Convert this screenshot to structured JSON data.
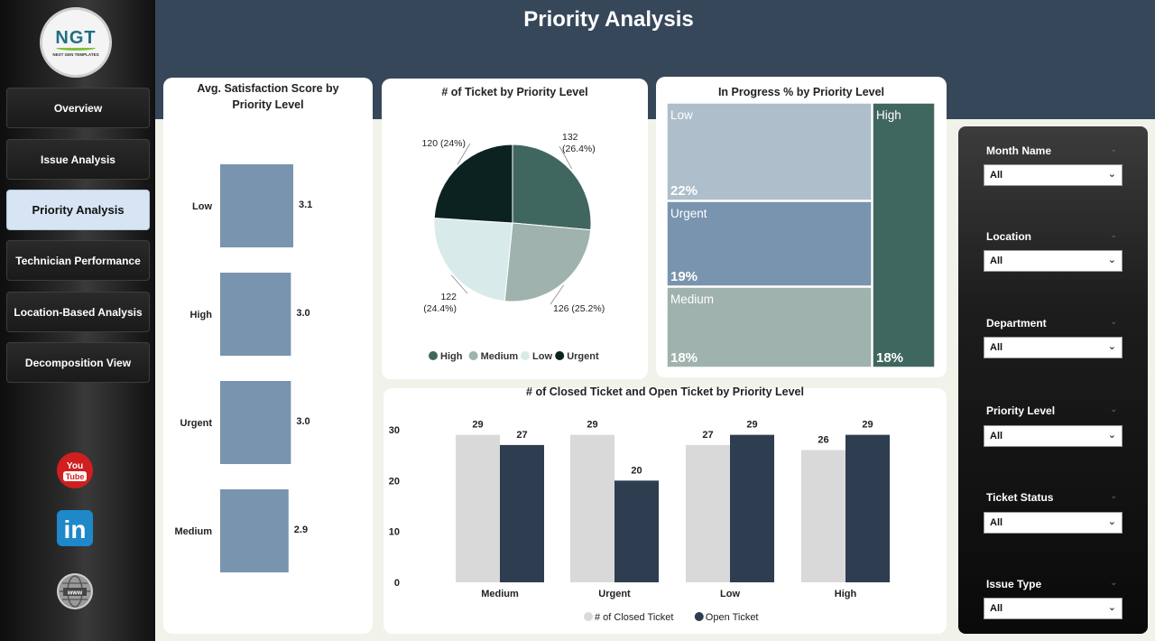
{
  "brand": {
    "logo_text": "NGT",
    "logo_subtext": "NEXT GEN TEMPLATES"
  },
  "nav": {
    "items": [
      {
        "label": "Overview"
      },
      {
        "label": "Issue Analysis"
      },
      {
        "label": "Priority Analysis",
        "active": true
      },
      {
        "label": "Technician Performance"
      },
      {
        "label": "Location-Based Analysis"
      },
      {
        "label": "Decomposition View"
      }
    ]
  },
  "social": {
    "youtube_label": "You",
    "youtube_label2": "Tube",
    "linkedin_label": "in",
    "web_label": "www"
  },
  "header": {
    "title": "Priority Analysis"
  },
  "satisfaction": {
    "title_line1": "Avg. Satisfaction Score by",
    "title_line2": "Priority Level"
  },
  "pie": {
    "title": "# of Ticket by Priority Level"
  },
  "treemap": {
    "title": "In Progress % by Priority Level"
  },
  "closed_open": {
    "title": "# of Closed Ticket and Open Ticket by Priority Level"
  },
  "chart_data": [
    {
      "id": "satisfaction",
      "type": "bar",
      "orientation": "horizontal",
      "title": "Avg. Satisfaction Score by Priority Level",
      "categories": [
        "Low",
        "High",
        "Urgent",
        "Medium"
      ],
      "values": [
        3.1,
        3.0,
        3.0,
        2.9
      ],
      "labels": [
        "3.1",
        "3.0",
        "3.0",
        "2.9"
      ],
      "color": "#7994ae"
    },
    {
      "id": "pie",
      "type": "pie",
      "title": "# of Ticket by Priority Level",
      "categories": [
        "High",
        "Medium",
        "Low",
        "Urgent"
      ],
      "values": [
        132,
        126,
        122,
        120
      ],
      "labels": [
        "132 (26.4%)",
        "126 (25.2%)",
        "122 (24.4%)",
        "120 (24%)"
      ],
      "colors": [
        "#40675f",
        "#9fb2ad",
        "#d8ebea",
        "#0b2220"
      ],
      "legend": [
        "High",
        "Medium",
        "Low",
        "Urgent"
      ]
    },
    {
      "id": "treemap",
      "type": "treemap",
      "title": "In Progress % by Priority Level",
      "categories": [
        "Low",
        "Urgent",
        "Medium",
        "High"
      ],
      "values": [
        22,
        19,
        18,
        18
      ],
      "labels": [
        "22%",
        "19%",
        "18%",
        "18%"
      ],
      "colors": [
        "#aebecb",
        "#7994ae",
        "#9fb2ad",
        "#40675f"
      ]
    },
    {
      "id": "closed_open",
      "type": "bar",
      "title": "# of Closed Ticket and Open Ticket by Priority Level",
      "categories": [
        "Medium",
        "Urgent",
        "Low",
        "High"
      ],
      "ylim": [
        0,
        30
      ],
      "yticks": [
        "0",
        "10",
        "20",
        "30"
      ],
      "series": [
        {
          "name": "# of Closed Ticket",
          "values": [
            29,
            29,
            27,
            26
          ],
          "color": "#d9d9d9"
        },
        {
          "name": "Open Ticket",
          "values": [
            27,
            20,
            29,
            29
          ],
          "color": "#2e3d50"
        }
      ]
    }
  ],
  "filters": [
    {
      "label": "Month Name",
      "value": "All"
    },
    {
      "label": "Location",
      "value": "All"
    },
    {
      "label": "Department",
      "value": "All"
    },
    {
      "label": "Priority Level",
      "value": "All"
    },
    {
      "label": "Ticket Status",
      "value": "All"
    },
    {
      "label": "Issue Type",
      "value": "All"
    }
  ]
}
